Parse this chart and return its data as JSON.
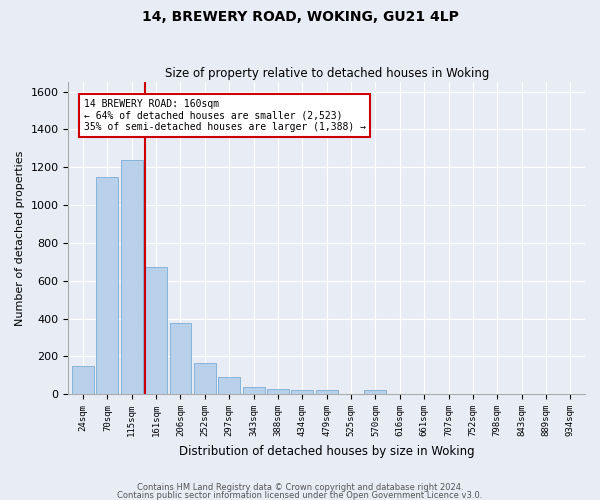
{
  "title1": "14, BREWERY ROAD, WOKING, GU21 4LP",
  "title2": "Size of property relative to detached houses in Woking",
  "xlabel": "Distribution of detached houses by size in Woking",
  "ylabel": "Number of detached properties",
  "footer1": "Contains HM Land Registry data © Crown copyright and database right 2024.",
  "footer2": "Contains public sector information licensed under the Open Government Licence v3.0.",
  "bar_labels": [
    "24sqm",
    "70sqm",
    "115sqm",
    "161sqm",
    "206sqm",
    "252sqm",
    "297sqm",
    "343sqm",
    "388sqm",
    "434sqm",
    "479sqm",
    "525sqm",
    "570sqm",
    "616sqm",
    "661sqm",
    "707sqm",
    "752sqm",
    "798sqm",
    "843sqm",
    "889sqm",
    "934sqm"
  ],
  "bar_values": [
    150,
    1150,
    1240,
    670,
    375,
    165,
    90,
    40,
    25,
    20,
    20,
    0,
    20,
    0,
    0,
    0,
    0,
    0,
    0,
    0,
    0
  ],
  "bar_color": "#b8d0ea",
  "bar_edge_color": "#7aadd4",
  "vline_color": "#cc0000",
  "annotation_line1": "14 BREWERY ROAD: 160sqm",
  "annotation_line2": "← 64% of detached houses are smaller (2,523)",
  "annotation_line3": "35% of semi-detached houses are larger (1,388) →",
  "annotation_box_color": "#cc0000",
  "ylim": [
    0,
    1650
  ],
  "yticks": [
    0,
    200,
    400,
    600,
    800,
    1000,
    1200,
    1400,
    1600
  ],
  "bg_color": "#e8ecf5",
  "plot_bg_color": "#e8ecf5",
  "grid_color": "#ffffff",
  "vline_bin_index": 3,
  "bar_width": 0.9
}
